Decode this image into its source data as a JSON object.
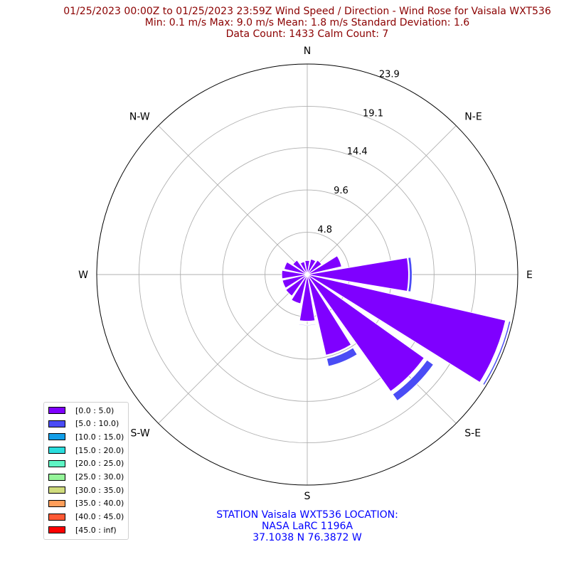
{
  "title": {
    "line1": "01/25/2023 00:00Z to 01/25/2023 23:59Z Wind Speed / Direction - Wind Rose for Vaisala WXT536",
    "line2": "Min: 0.1 m/s   Max: 9.0 m/s   Mean: 1.8 m/s  Standard Deviation: 1.6",
    "line3": "Data Count: 1433  Calm Count:  7"
  },
  "footer": {
    "line1": "STATION Vaisala WXT536 LOCATION:",
    "line2": "NASA LaRC 1196A",
    "line3": "37.1038 N 76.3872 W"
  },
  "colors": {
    "title": "#8b0000",
    "footer": "#0000ff",
    "grid": "#b0b0b0"
  },
  "chart_data": {
    "type": "windrose",
    "directions": [
      "N",
      "N-E",
      "E",
      "S-E",
      "S",
      "S-W",
      "W",
      "N-W"
    ],
    "radial_ticks": [
      "4.8",
      "9.6",
      "14.4",
      "19.1",
      "23.9"
    ],
    "radial_tick_values": [
      4.8,
      9.6,
      14.4,
      19.1,
      23.9
    ],
    "rmax": 23.9,
    "sectors_deg": [
      0,
      22.5,
      45,
      67.5,
      90,
      112.5,
      135,
      157.5,
      180,
      202.5,
      225,
      247.5,
      270,
      292.5,
      315,
      337.5
    ],
    "series": [
      {
        "name": "[0.0 : 5.0)",
        "color": "#7f00ff",
        "values": [
          1.6,
          1.8,
          2.0,
          4.0,
          11.5,
          23.1,
          16.3,
          9.4,
          5.3,
          3.4,
          3.0,
          2.9,
          2.9,
          2.7,
          2.0,
          1.5
        ]
      },
      {
        "name": "[5.0 : 10.0)",
        "color": "#4a4cf5",
        "values": [
          0,
          0,
          0,
          0,
          0.1,
          0.6,
          1.3,
          1.3,
          0.5,
          0,
          0,
          0,
          0,
          0,
          0,
          0
        ]
      },
      {
        "name": "[10.0 : 15.0)",
        "color": "#129ee8",
        "values": [
          0,
          0,
          0,
          0,
          0,
          0,
          0,
          0,
          0,
          0,
          0,
          0,
          0,
          0,
          0,
          0
        ]
      },
      {
        "name": "[15.0 : 20.0)",
        "color": "#2adddd",
        "values": [
          0,
          0,
          0,
          0,
          0,
          0,
          0,
          0,
          0,
          0,
          0,
          0,
          0,
          0,
          0,
          0
        ]
      },
      {
        "name": "[20.0 : 25.0)",
        "color": "#5ef5c4",
        "values": [
          0,
          0,
          0,
          0,
          0,
          0,
          0,
          0,
          0,
          0,
          0,
          0,
          0,
          0,
          0,
          0
        ]
      },
      {
        "name": "[25.0 : 30.0)",
        "color": "#95f59a",
        "values": [
          0,
          0,
          0,
          0,
          0,
          0,
          0,
          0,
          0,
          0,
          0,
          0,
          0,
          0,
          0,
          0
        ]
      },
      {
        "name": "[30.0 : 35.0)",
        "color": "#d0dc7d",
        "values": [
          0,
          0,
          0,
          0,
          0,
          0,
          0,
          0,
          0,
          0,
          0,
          0,
          0,
          0,
          0,
          0
        ]
      },
      {
        "name": "[35.0 : 40.0)",
        "color": "#ff9e5a",
        "values": [
          0,
          0,
          0,
          0,
          0,
          0,
          0,
          0,
          0,
          0,
          0,
          0,
          0,
          0,
          0,
          0
        ]
      },
      {
        "name": "[40.0 : 45.0)",
        "color": "#ff5a35",
        "values": [
          0,
          0,
          0,
          0,
          0,
          0,
          0,
          0,
          0,
          0,
          0,
          0,
          0,
          0,
          0,
          0
        ]
      },
      {
        "name": "[45.0 : inf)",
        "color": "#ff0000",
        "values": [
          0,
          0,
          0,
          0,
          0,
          0,
          0,
          0,
          0,
          0,
          0,
          0,
          0,
          0,
          0,
          0
        ]
      }
    ]
  }
}
